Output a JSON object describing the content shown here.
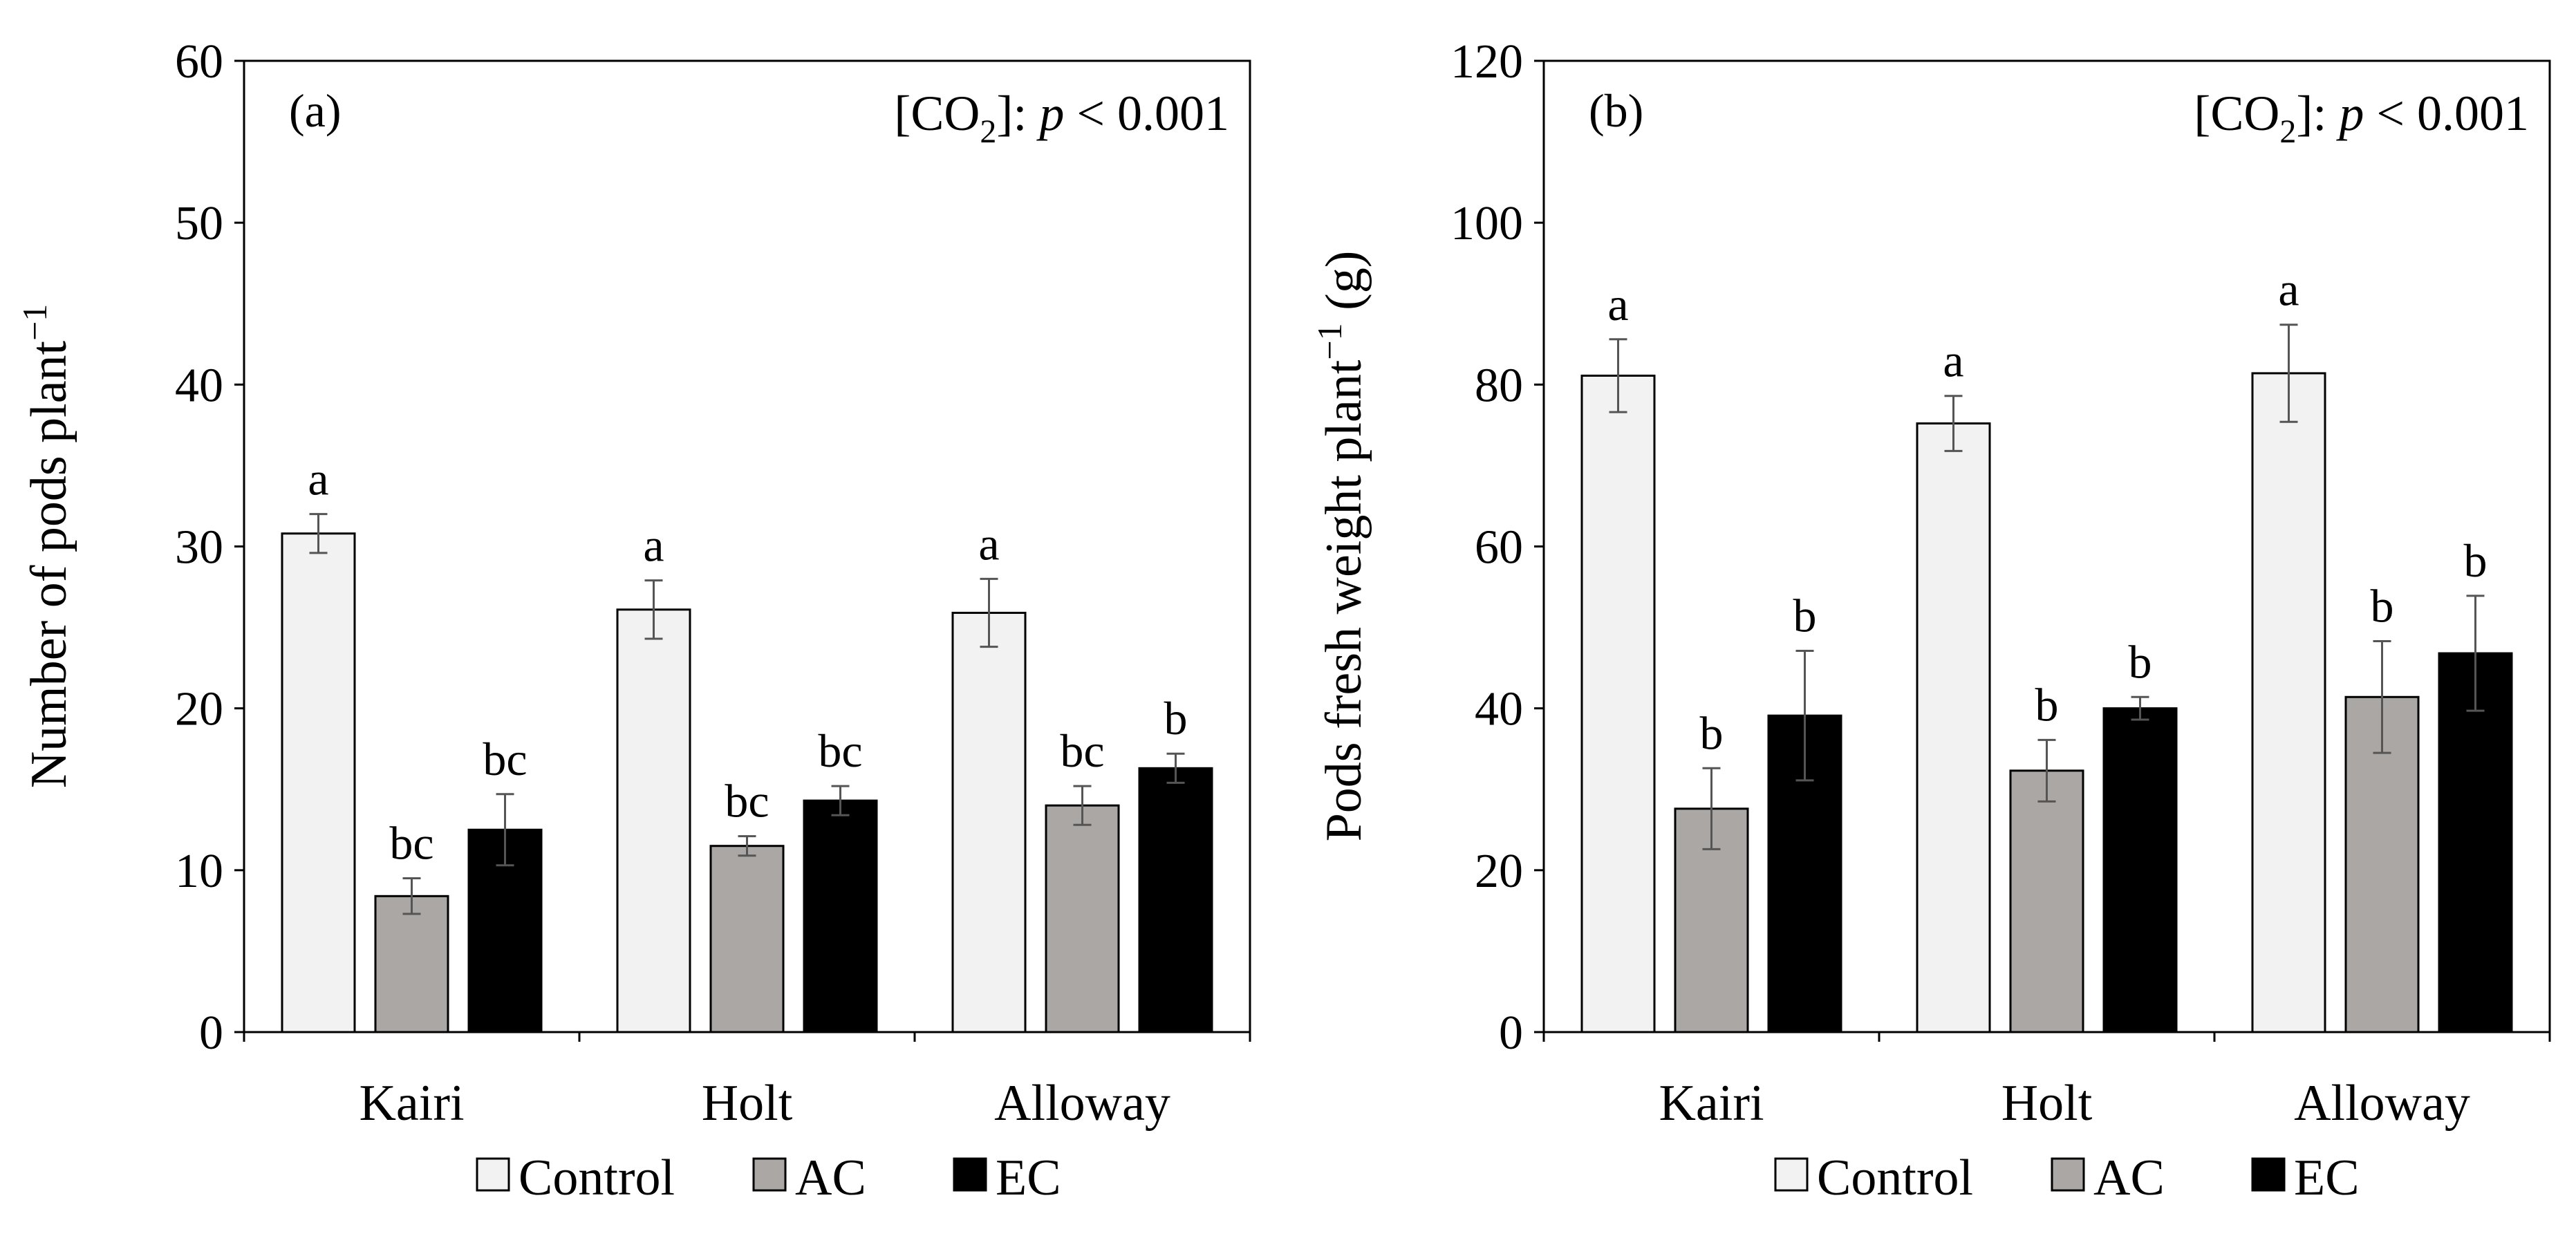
{
  "chart_data": [
    {
      "type": "bar",
      "panel_label": "(a)",
      "annotation": {
        "prefix": "[CO",
        "subscript": "2",
        "middle": "]: ",
        "italic": "p",
        "suffix": " < 0.001"
      },
      "ylabel": {
        "main": "Number of pods plant",
        "superscript": "−1"
      },
      "ylim": [
        0,
        60
      ],
      "yticks": [
        0,
        10,
        20,
        30,
        40,
        50,
        60
      ],
      "categories": [
        "Kairi",
        "Holt",
        "Alloway"
      ],
      "series": [
        {
          "name": "Control",
          "values": [
            30.8,
            26.1,
            25.9
          ],
          "errors": [
            1.2,
            1.8,
            2.1
          ],
          "letters": [
            "a",
            "a",
            "a"
          ]
        },
        {
          "name": "AC",
          "values": [
            8.4,
            11.5,
            14.0
          ],
          "errors": [
            1.1,
            0.6,
            1.2
          ],
          "letters": [
            "bc",
            "bc",
            "bc"
          ]
        },
        {
          "name": "EC",
          "values": [
            12.5,
            14.3,
            16.3
          ],
          "errors": [
            2.2,
            0.9,
            0.9
          ],
          "letters": [
            "bc",
            "bc",
            "b"
          ]
        }
      ]
    },
    {
      "type": "bar",
      "panel_label": "(b)",
      "annotation": {
        "prefix": "[CO",
        "subscript": "2",
        "middle": "]: ",
        "italic": "p",
        "suffix": " < 0.001"
      },
      "ylabel": {
        "main": "Pods fresh weight plant",
        "superscript": "−1",
        "suffix": " (g)"
      },
      "ylim": [
        0,
        120
      ],
      "yticks": [
        0,
        20,
        40,
        60,
        80,
        100,
        120
      ],
      "categories": [
        "Kairi",
        "Holt",
        "Alloway"
      ],
      "series": [
        {
          "name": "Control",
          "values": [
            81.1,
            75.2,
            81.4
          ],
          "errors": [
            4.5,
            3.4,
            6.0
          ],
          "letters": [
            "a",
            "a",
            "a"
          ]
        },
        {
          "name": "AC",
          "values": [
            27.6,
            32.3,
            41.4
          ],
          "errors": [
            5.0,
            3.8,
            6.9
          ],
          "letters": [
            "b",
            "b",
            "b"
          ]
        },
        {
          "name": "EC",
          "values": [
            39.1,
            40.0,
            46.8
          ],
          "errors": [
            8.0,
            1.4,
            7.1
          ],
          "letters": [
            "b",
            "b",
            "b"
          ]
        }
      ]
    }
  ],
  "colors": {
    "Control": "#f2f2f2",
    "AC": "#aaa7a5",
    "EC": "#000000"
  },
  "legend": [
    {
      "name": "Control",
      "color": "#f2f2f2"
    },
    {
      "name": "AC",
      "color": "#aaa7a5"
    },
    {
      "name": "EC",
      "color": "#000000"
    }
  ]
}
